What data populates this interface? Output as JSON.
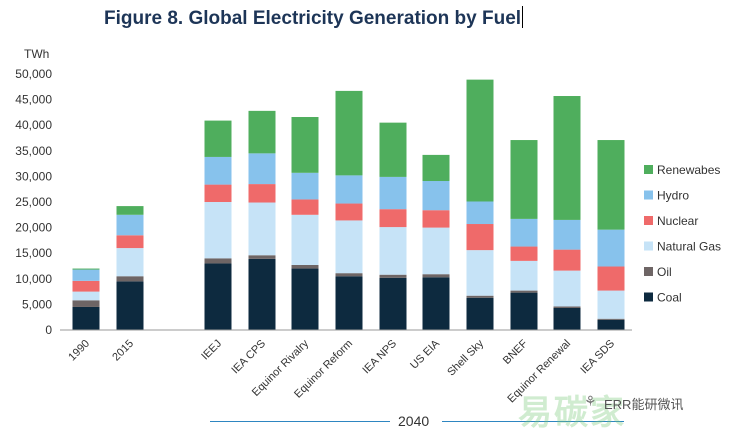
{
  "chart_data": {
    "type": "bar",
    "stacked": true,
    "title": "Figure 8. Global Electricity Generation by Fuel",
    "ylabel": "TWh",
    "ylim": [
      0,
      50000
    ],
    "yticks": [
      "0",
      "5,000",
      "10,000",
      "15,000",
      "20,000",
      "25,000",
      "30,000",
      "35,000",
      "40,000",
      "45,000",
      "50,000"
    ],
    "period_label": "2040",
    "categories": [
      "1990",
      "2015",
      "IEEJ",
      "IEA CPS",
      "Equinor Rivalry",
      "Equinor Reform",
      "IEA NPS",
      "US EIA",
      "Shell Sky",
      "BNEF",
      "Equinor Renewal",
      "IEA SDS"
    ],
    "legend_position": "right",
    "series": [
      {
        "name": "Coal",
        "color": "#0d2a3f",
        "values": [
          4500,
          9500,
          13000,
          13900,
          12000,
          10500,
          10200,
          10300,
          6300,
          7300,
          4300,
          2000
        ]
      },
      {
        "name": "Oil",
        "color": "#6e6565",
        "values": [
          1300,
          1000,
          1000,
          700,
          700,
          600,
          600,
          600,
          400,
          400,
          300,
          200
        ]
      },
      {
        "name": "Natural Gas",
        "color": "#c6e3f7",
        "values": [
          1700,
          5500,
          11000,
          10300,
          9800,
          10300,
          9300,
          9100,
          8900,
          5800,
          7000,
          5500
        ]
      },
      {
        "name": "Nuclear",
        "color": "#ef6a6a",
        "values": [
          2100,
          2500,
          3400,
          3600,
          3000,
          3300,
          3500,
          3400,
          5100,
          2800,
          4100,
          4700
        ]
      },
      {
        "name": "Hydro",
        "color": "#87c2ec",
        "values": [
          2200,
          4000,
          5400,
          6000,
          5200,
          5500,
          6300,
          5700,
          4400,
          5400,
          5800,
          7200
        ]
      },
      {
        "name": "Renewabes",
        "color": "#4fae5d",
        "values": [
          200,
          1700,
          7100,
          8300,
          10900,
          16500,
          10600,
          5100,
          23800,
          15400,
          24200,
          17500
        ]
      }
    ]
  },
  "watermark": {
    "brand": "易碳家",
    "text": "ERR能研微讯"
  }
}
